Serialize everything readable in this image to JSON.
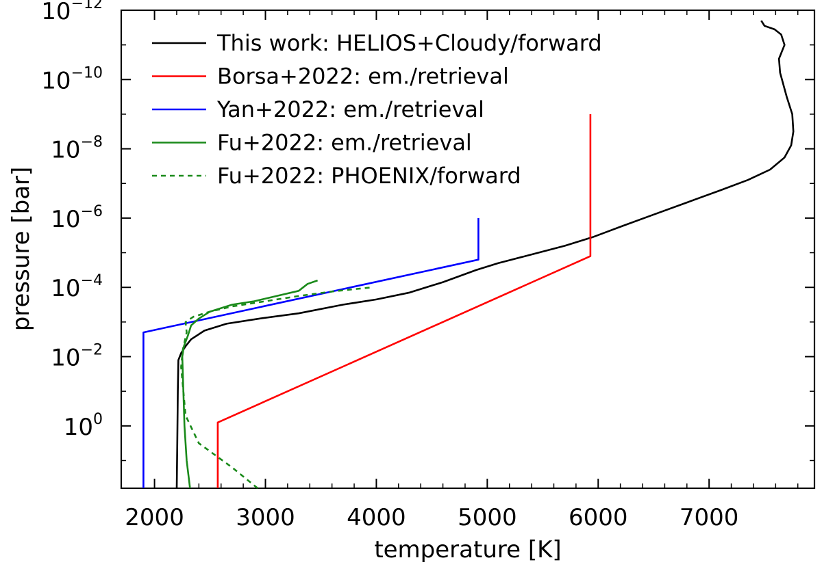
{
  "chart_data": {
    "type": "line",
    "title": "",
    "xlabel": "temperature [K]",
    "ylabel": "pressure [bar]",
    "xscale": "linear",
    "yscale": "log",
    "y_inverted": true,
    "xlim": [
      1700,
      7950
    ],
    "ylim_log10": [
      1.8,
      -12
    ],
    "x_ticks": [
      2000,
      3000,
      4000,
      5000,
      6000,
      7000
    ],
    "x_tick_labels": [
      "2000",
      "3000",
      "4000",
      "5000",
      "6000",
      "7000"
    ],
    "y_ticks_log10": [
      0,
      -2,
      -4,
      -6,
      -8,
      -10,
      -12
    ],
    "y_tick_labels": [
      {
        "base": "10",
        "exp": "0"
      },
      {
        "base": "10",
        "exp": "−2"
      },
      {
        "base": "10",
        "exp": "−4"
      },
      {
        "base": "10",
        "exp": "−6"
      },
      {
        "base": "10",
        "exp": "−8"
      },
      {
        "base": "10",
        "exp": "−10"
      },
      {
        "base": "10",
        "exp": "−12"
      }
    ],
    "legend_position": "top-left",
    "grid": false,
    "series": [
      {
        "name": "This work: HELIOS+Cloudy/forward",
        "color": "#000000",
        "dash": "solid",
        "points": [
          [
            2200,
            1.8
          ],
          [
            2205,
            0.5
          ],
          [
            2210,
            -1.0
          ],
          [
            2215,
            -1.9
          ],
          [
            2240,
            -2.1
          ],
          [
            2280,
            -2.3
          ],
          [
            2330,
            -2.5
          ],
          [
            2450,
            -2.75
          ],
          [
            2650,
            -2.95
          ],
          [
            2950,
            -3.1
          ],
          [
            3300,
            -3.25
          ],
          [
            3700,
            -3.5
          ],
          [
            4000,
            -3.65
          ],
          [
            4300,
            -3.85
          ],
          [
            4600,
            -4.15
          ],
          [
            4900,
            -4.5
          ],
          [
            5100,
            -4.7
          ],
          [
            5400,
            -4.95
          ],
          [
            5700,
            -5.2
          ],
          [
            5950,
            -5.45
          ],
          [
            6200,
            -5.75
          ],
          [
            6500,
            -6.1
          ],
          [
            6800,
            -6.45
          ],
          [
            7100,
            -6.8
          ],
          [
            7350,
            -7.1
          ],
          [
            7550,
            -7.4
          ],
          [
            7680,
            -7.75
          ],
          [
            7740,
            -8.1
          ],
          [
            7760,
            -8.5
          ],
          [
            7750,
            -9.0
          ],
          [
            7700,
            -9.5
          ],
          [
            7640,
            -10.2
          ],
          [
            7630,
            -10.6
          ],
          [
            7680,
            -11.0
          ],
          [
            7650,
            -11.3
          ],
          [
            7590,
            -11.45
          ],
          [
            7500,
            -11.55
          ],
          [
            7470,
            -11.7
          ]
        ]
      },
      {
        "name": "Borsa+2022: em./retrieval",
        "color": "#ff0000",
        "dash": "solid",
        "points": [
          [
            2570,
            1.8
          ],
          [
            2570,
            -0.1
          ],
          [
            5930,
            -4.9
          ],
          [
            5930,
            -9.0
          ]
        ]
      },
      {
        "name": "Yan+2022: em./retrieval",
        "color": "#0000ff",
        "dash": "solid",
        "points": [
          [
            1900,
            1.8
          ],
          [
            1900,
            -2.7
          ],
          [
            4920,
            -4.8
          ],
          [
            4920,
            -6.0
          ]
        ]
      },
      {
        "name": "Fu+2022: em./retrieval",
        "color": "#1a8a1a",
        "dash": "solid",
        "points": [
          [
            2320,
            1.8
          ],
          [
            2290,
            1.0
          ],
          [
            2270,
            0.0
          ],
          [
            2260,
            -1.0
          ],
          [
            2250,
            -2.0
          ],
          [
            2265,
            -2.3
          ],
          [
            2300,
            -2.6
          ],
          [
            2330,
            -2.9
          ],
          [
            2400,
            -3.1
          ],
          [
            2500,
            -3.3
          ],
          [
            2700,
            -3.5
          ],
          [
            2900,
            -3.6
          ],
          [
            3100,
            -3.75
          ],
          [
            3300,
            -3.9
          ],
          [
            3380,
            -4.1
          ],
          [
            3470,
            -4.2
          ]
        ]
      },
      {
        "name": "Fu+2022: PHOENIX/forward",
        "color": "#1a8a1a",
        "dash": "dashed",
        "points": [
          [
            2930,
            1.8
          ],
          [
            2700,
            1.2
          ],
          [
            2400,
            0.5
          ],
          [
            2280,
            -0.3
          ],
          [
            2260,
            -1.0
          ],
          [
            2240,
            -1.7
          ],
          [
            2255,
            -2.2
          ],
          [
            2290,
            -2.7
          ],
          [
            2280,
            -3.0
          ],
          [
            2350,
            -3.15
          ],
          [
            2500,
            -3.3
          ],
          [
            2700,
            -3.45
          ],
          [
            3000,
            -3.6
          ],
          [
            3300,
            -3.75
          ],
          [
            3600,
            -3.88
          ],
          [
            3960,
            -4.0
          ]
        ]
      }
    ]
  }
}
